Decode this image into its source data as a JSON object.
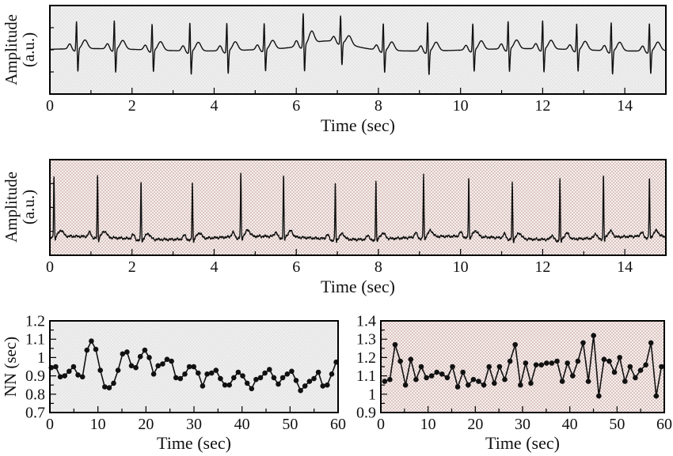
{
  "palette": {
    "signal": "#111111",
    "frame": "#000000",
    "marker": "#111111",
    "gray_base": "#ebebeb",
    "gray_check": "#e0e0e0",
    "gray_check2": "#f3f3f3",
    "pink_base": "#fefcfb",
    "pink_dot": "#a87872",
    "pink_dot2": "#d9bcb7"
  },
  "chart_data": [
    {
      "id": "ecg-top",
      "type": "line",
      "title": "",
      "xlabel": "Time (sec)",
      "ylabel": "Amplitude (a.u.)",
      "ylabel_line1": "Amplitude",
      "ylabel_line2": "(a.u.)",
      "background": "gray",
      "xlim": [
        0,
        15
      ],
      "xticks": [
        0,
        2,
        4,
        6,
        8,
        10,
        12,
        14
      ],
      "xtick_labels": [
        "0",
        "2",
        "4",
        "6",
        "8",
        "10",
        "12",
        "14"
      ],
      "xminor": [
        1,
        3,
        5,
        7,
        9,
        11,
        13
      ],
      "grid": false,
      "legend": "none",
      "r_peak_times_sec": [
        0.65,
        1.57,
        2.49,
        3.41,
        4.31,
        5.22,
        6.17,
        7.08,
        8.12,
        9.2,
        10.3,
        11.16,
        12.0,
        12.83,
        13.67,
        14.6
      ]
    },
    {
      "id": "ecg-bottom",
      "type": "line",
      "title": "",
      "xlabel": "Time (sec)",
      "ylabel": "Amplitude (a.u.)",
      "ylabel_line1": "Amplitude",
      "ylabel_line2": "(a.u.)",
      "background": "pink-dots",
      "xlim": [
        0,
        15
      ],
      "xticks": [
        0,
        2,
        4,
        6,
        8,
        10,
        12,
        14
      ],
      "xtick_labels": [
        "0",
        "2",
        "4",
        "6",
        "8",
        "10",
        "12",
        "14"
      ],
      "xminor": [
        1,
        3,
        5,
        7,
        9,
        11,
        13
      ],
      "grid": false,
      "legend": "none",
      "r_peak_times_sec": [
        0.1,
        1.16,
        2.22,
        3.47,
        4.65,
        5.69,
        6.95,
        7.94,
        9.1,
        10.2,
        11.26,
        12.42,
        13.48,
        14.6
      ]
    },
    {
      "id": "nn-left",
      "type": "scatter",
      "title": "",
      "xlabel": "Time (sec)",
      "ylabel": "NN (sec)",
      "background": "gray",
      "xlim": [
        0,
        60
      ],
      "ylim": [
        0.7,
        1.2
      ],
      "xticks": [
        0,
        10,
        20,
        30,
        40,
        50,
        60
      ],
      "xtick_labels": [
        "0",
        "10",
        "20",
        "30",
        "40",
        "50",
        "60"
      ],
      "xminor": [
        5,
        15,
        25,
        35,
        45,
        55
      ],
      "ytick_values": [
        0.7,
        0.8,
        0.9,
        1.0,
        1.1,
        1.2
      ],
      "ytick_labels": [
        "0.7",
        "0.8",
        "0.9",
        "1",
        "1.1",
        "1.2"
      ],
      "yminor": [
        0.75,
        0.85,
        0.95,
        1.05,
        1.15
      ],
      "grid": false,
      "legend": "none",
      "x_start": 0.3,
      "x_step": 0.9266,
      "values": [
        0.945,
        0.95,
        0.895,
        0.9,
        0.925,
        0.95,
        0.905,
        0.895,
        1.04,
        1.09,
        1.045,
        0.93,
        0.84,
        0.835,
        0.86,
        0.93,
        1.02,
        1.03,
        0.955,
        0.945,
        1.005,
        1.04,
        1.0,
        0.91,
        0.955,
        0.965,
        0.99,
        0.98,
        0.89,
        0.885,
        0.91,
        0.95,
        0.95,
        0.915,
        0.845,
        0.91,
        0.915,
        0.93,
        0.885,
        0.85,
        0.85,
        0.89,
        0.92,
        0.9,
        0.86,
        0.83,
        0.88,
        0.89,
        0.915,
        0.935,
        0.89,
        0.855,
        0.89,
        0.91,
        0.925,
        0.875,
        0.82,
        0.845,
        0.87,
        0.885,
        0.92,
        0.845,
        0.85,
        0.91,
        0.975
      ]
    },
    {
      "id": "nn-right",
      "type": "scatter",
      "title": "",
      "xlabel": "Time (sec)",
      "ylabel": "",
      "background": "pink-dots",
      "xlim": [
        0,
        60
      ],
      "ylim": [
        0.9,
        1.4
      ],
      "xticks": [
        0,
        10,
        20,
        30,
        40,
        50,
        60
      ],
      "xtick_labels": [
        "0",
        "10",
        "20",
        "30",
        "40",
        "50",
        "60"
      ],
      "xminor": [
        5,
        15,
        25,
        35,
        45,
        55
      ],
      "ytick_values": [
        0.9,
        1.0,
        1.1,
        1.2,
        1.3,
        1.4
      ],
      "ytick_labels": [
        "0.9",
        "1",
        "1.1",
        "1.2",
        "1.3",
        "1.4"
      ],
      "yminor": [
        0.95,
        1.05,
        1.15,
        1.25,
        1.35
      ],
      "grid": false,
      "legend": "none",
      "x_start": 0.8,
      "x_step": 1.1057,
      "values": [
        1.07,
        1.08,
        1.27,
        1.18,
        1.05,
        1.19,
        1.08,
        1.15,
        1.09,
        1.1,
        1.12,
        1.11,
        1.09,
        1.15,
        1.04,
        1.12,
        1.05,
        1.08,
        1.07,
        1.05,
        1.15,
        1.06,
        1.15,
        1.08,
        1.18,
        1.27,
        1.05,
        1.17,
        1.06,
        1.16,
        1.16,
        1.17,
        1.17,
        1.18,
        1.07,
        1.17,
        1.1,
        1.18,
        1.28,
        1.07,
        1.32,
        0.99,
        1.19,
        1.18,
        1.12,
        1.2,
        1.07,
        1.15,
        1.09,
        1.13,
        1.16,
        1.28,
        0.99,
        1.15
      ]
    }
  ]
}
